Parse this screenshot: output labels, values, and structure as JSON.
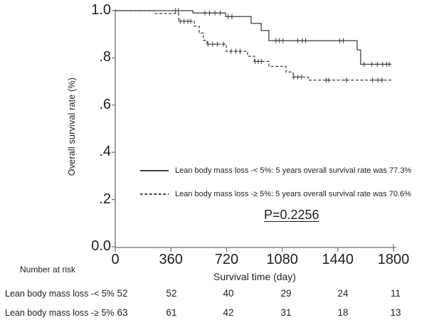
{
  "figure": {
    "y_axis_title": "Overall survival rate (%)",
    "x_axis_title": "Survival time (day)",
    "p_value": "P=0.2256",
    "colors": {
      "line": "#3f3f3f",
      "axis": "#6e6e6e",
      "text": "#1f1f1f"
    }
  },
  "legend": {
    "items": [
      {
        "style": "solid",
        "label": "Lean body mass loss -< 5%: 5 years overall survival rate was 77.3%"
      },
      {
        "style": "dashed",
        "label": "Lean body mass loss -≥ 5%: 5 years overall survival rate was 70.6%"
      }
    ]
  },
  "risk_table": {
    "heading": "Number at risk",
    "time_points": [
      0,
      360,
      720,
      1080,
      1440,
      1800
    ],
    "rows": [
      {
        "label": "Lean body mass loss -< 5%",
        "counts": [
          52,
          52,
          40,
          29,
          24,
          11
        ]
      },
      {
        "label": "Lean body mass loss -≥ 5%",
        "counts": [
          63,
          61,
          42,
          31,
          18,
          13
        ]
      }
    ]
  },
  "chart_data": {
    "type": "line",
    "subtype": "kaplan-meier-step",
    "title": "",
    "xlabel": "Survival time (day)",
    "ylabel": "Overall survival rate (%)",
    "xlim": [
      0,
      1800
    ],
    "ylim": [
      0.0,
      1.0
    ],
    "x_ticks": [
      0,
      360,
      720,
      1080,
      1440,
      1800
    ],
    "y_ticks": [
      {
        "value": 0.0,
        "label": "0.0"
      },
      {
        "value": 0.2,
        "label": ".2"
      },
      {
        "value": 0.4,
        "label": ".4"
      },
      {
        "value": 0.6,
        "label": ".6"
      },
      {
        "value": 0.8,
        "label": ".8"
      },
      {
        "value": 1.0,
        "label": "1.0"
      }
    ],
    "grid": false,
    "legend_position": "inside-lower-center",
    "annotations": [
      {
        "text": "P=0.2256",
        "underline": true
      }
    ],
    "series": [
      {
        "name": "Lean body mass loss -< 5%",
        "line_style": "solid",
        "five_year_rate": "77.3%",
        "steps": [
          [
            0,
            1.0
          ],
          [
            502,
            0.99
          ],
          [
            714,
            0.975
          ],
          [
            879,
            0.946
          ],
          [
            944,
            0.916
          ],
          [
            994,
            0.873
          ],
          [
            1565,
            0.834
          ],
          [
            1588,
            0.773
          ],
          [
            1786,
            0.773
          ]
        ],
        "censor_marks": [
          [
            390,
            1.0
          ],
          [
            408,
            1.0
          ],
          [
            580,
            0.99
          ],
          [
            610,
            0.99
          ],
          [
            645,
            0.99
          ],
          [
            680,
            0.99
          ],
          [
            730,
            0.975
          ],
          [
            755,
            0.975
          ],
          [
            1040,
            0.873
          ],
          [
            1062,
            0.873
          ],
          [
            1085,
            0.873
          ],
          [
            1180,
            0.873
          ],
          [
            1210,
            0.873
          ],
          [
            1232,
            0.873
          ],
          [
            1452,
            0.873
          ],
          [
            1475,
            0.873
          ],
          [
            1610,
            0.773
          ],
          [
            1660,
            0.773
          ],
          [
            1695,
            0.773
          ],
          [
            1730,
            0.773
          ],
          [
            1755,
            0.773
          ],
          [
            1772,
            0.773
          ]
        ]
      },
      {
        "name": "Lean body mass loss -≥ 5%",
        "line_style": "dashed",
        "five_year_rate": "70.6%",
        "steps": [
          [
            0,
            1.0
          ],
          [
            258,
            0.988
          ],
          [
            410,
            0.955
          ],
          [
            511,
            0.934
          ],
          [
            543,
            0.905
          ],
          [
            570,
            0.874
          ],
          [
            595,
            0.858
          ],
          [
            718,
            0.828
          ],
          [
            856,
            0.807
          ],
          [
            902,
            0.785
          ],
          [
            994,
            0.764
          ],
          [
            1105,
            0.74
          ],
          [
            1151,
            0.719
          ],
          [
            1248,
            0.706
          ],
          [
            1786,
            0.706
          ]
        ],
        "censor_marks": [
          [
            420,
            0.955
          ],
          [
            445,
            0.955
          ],
          [
            470,
            0.955
          ],
          [
            488,
            0.955
          ],
          [
            600,
            0.858
          ],
          [
            630,
            0.858
          ],
          [
            660,
            0.858
          ],
          [
            700,
            0.858
          ],
          [
            750,
            0.828
          ],
          [
            780,
            0.828
          ],
          [
            808,
            0.828
          ],
          [
            905,
            0.785
          ],
          [
            925,
            0.785
          ],
          [
            945,
            0.785
          ],
          [
            1155,
            0.719
          ],
          [
            1180,
            0.719
          ],
          [
            1205,
            0.719
          ],
          [
            1365,
            0.706
          ],
          [
            1382,
            0.706
          ],
          [
            1496,
            0.706
          ],
          [
            1665,
            0.706
          ],
          [
            1700,
            0.706
          ],
          [
            1725,
            0.706
          ]
        ]
      }
    ]
  }
}
